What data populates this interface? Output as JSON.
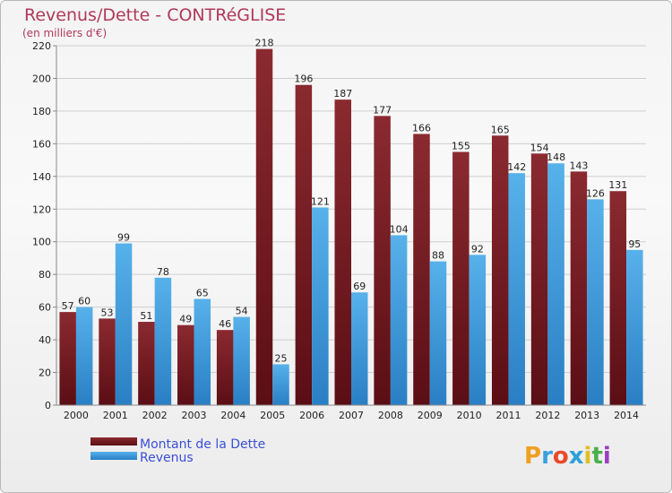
{
  "chart_data": {
    "type": "bar",
    "title": "Revenus/Dette - CONTRéGLISE",
    "subtitle": "(en milliers d'€)",
    "categories": [
      "2000",
      "2001",
      "2002",
      "2003",
      "2004",
      "2005",
      "2006",
      "2007",
      "2008",
      "2009",
      "2010",
      "2011",
      "2012",
      "2013",
      "2014"
    ],
    "series": [
      {
        "name": "Montant de la Dette",
        "color": "#7a1f26",
        "values": [
          57,
          53,
          51,
          49,
          46,
          218,
          196,
          187,
          177,
          166,
          155,
          165,
          154,
          143,
          131
        ]
      },
      {
        "name": "Revenus",
        "color": "#4aa3e0",
        "values": [
          60,
          99,
          78,
          65,
          54,
          25,
          121,
          69,
          104,
          88,
          92,
          142,
          148,
          126,
          95
        ]
      }
    ],
    "ylim": [
      0,
      220
    ],
    "yticks": [
      0,
      20,
      40,
      60,
      80,
      100,
      120,
      140,
      160,
      180,
      200,
      220
    ],
    "grid": true,
    "legend": "bottom-left"
  },
  "logo": {
    "text": "Proxiti"
  }
}
